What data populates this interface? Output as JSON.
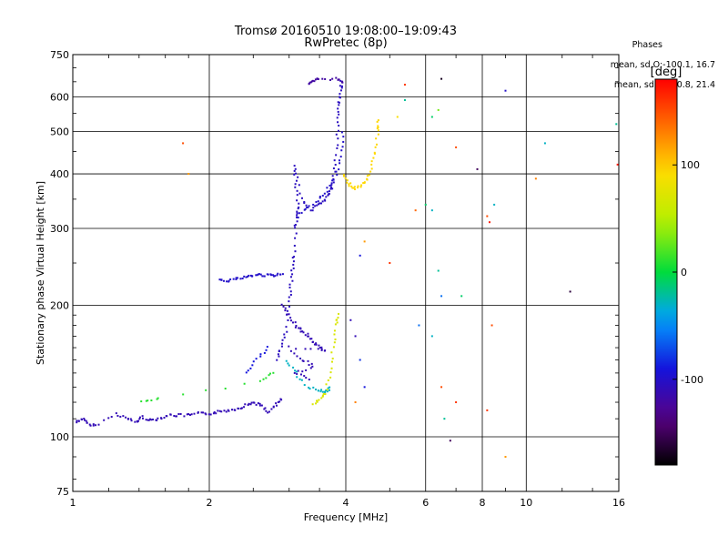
{
  "header": {
    "title": "Tromsø 20160510 19:08:00–19:09:43",
    "subtitle": "RwPretec (8p)"
  },
  "phases_box": {
    "heading": "Phases",
    "line_o": "mean, sd,O:-100.1, 16.7",
    "line_x": "mean, sd,X:  90.8, 21.4"
  },
  "colorbar": {
    "label": "[deg]",
    "ticks": [
      "100",
      "0",
      "-100"
    ],
    "range": [
      -180,
      180
    ]
  },
  "chart_data": {
    "type": "scatter",
    "title": "Tromsø 20160510 19:08:00–19:09:43",
    "subtitle": "RwPretec (8p)",
    "xlabel": "Frequency [MHz]",
    "ylabel": "Stationary phase Virtual Height [km]",
    "xscale": "log",
    "yscale": "log",
    "xlim": [
      1,
      16
    ],
    "ylim": [
      75,
      750
    ],
    "xticks": [
      1,
      2,
      4,
      6,
      8,
      10,
      16
    ],
    "yticks": [
      75,
      100,
      200,
      300,
      400,
      500,
      600,
      750
    ],
    "grid": true,
    "traces": [
      {
        "phase": -110,
        "points": [
          [
            1.02,
            108
          ],
          [
            1.05,
            110
          ],
          [
            1.08,
            107
          ],
          [
            1.12,
            106
          ],
          [
            1.25,
            113
          ],
          [
            1.32,
            110
          ],
          [
            1.38,
            108
          ],
          [
            1.42,
            111
          ],
          [
            1.48,
            109
          ],
          [
            1.55,
            110
          ],
          [
            1.62,
            112
          ],
          [
            1.7,
            112
          ],
          [
            1.8,
            112
          ],
          [
            1.9,
            113
          ],
          [
            2.0,
            113
          ],
          [
            2.1,
            114
          ],
          [
            2.2,
            115
          ],
          [
            2.3,
            116
          ],
          [
            2.4,
            118
          ],
          [
            2.5,
            120
          ],
          [
            2.6,
            118
          ],
          [
            2.7,
            114
          ],
          [
            2.8,
            118
          ],
          [
            2.9,
            122
          ]
        ]
      },
      {
        "phase": -105,
        "points": [
          [
            2.82,
            150
          ],
          [
            2.88,
            160
          ],
          [
            2.95,
            175
          ],
          [
            3.0,
            200
          ],
          [
            3.02,
            220
          ],
          [
            3.05,
            240
          ],
          [
            3.08,
            260
          ],
          [
            3.1,
            300
          ],
          [
            3.12,
            320
          ],
          [
            3.15,
            340
          ],
          [
            3.1,
            380
          ],
          [
            3.08,
            420
          ],
          [
            3.2,
            350
          ],
          [
            3.35,
            330
          ],
          [
            3.5,
            340
          ],
          [
            3.6,
            350
          ],
          [
            3.7,
            365
          ],
          [
            3.75,
            380
          ],
          [
            3.8,
            420
          ],
          [
            3.82,
            480
          ],
          [
            3.85,
            540
          ],
          [
            3.87,
            580
          ],
          [
            3.9,
            620
          ],
          [
            3.92,
            650
          ]
        ]
      },
      {
        "phase": -100,
        "points": [
          [
            3.15,
            320
          ],
          [
            3.3,
            335
          ],
          [
            3.5,
            350
          ],
          [
            3.65,
            370
          ],
          [
            3.8,
            395
          ],
          [
            3.9,
            440
          ],
          [
            3.95,
            500
          ]
        ]
      },
      {
        "phase": -120,
        "points": [
          [
            3.3,
            640
          ],
          [
            3.4,
            650
          ],
          [
            3.5,
            660
          ],
          [
            3.8,
            660
          ],
          [
            3.95,
            650
          ]
        ]
      },
      {
        "phase": 95,
        "points": [
          [
            3.95,
            400
          ],
          [
            4.05,
            380
          ],
          [
            4.15,
            370
          ],
          [
            4.3,
            375
          ],
          [
            4.45,
            385
          ],
          [
            4.55,
            410
          ],
          [
            4.65,
            450
          ],
          [
            4.7,
            500
          ],
          [
            4.72,
            530
          ]
        ]
      },
      {
        "phase": -100,
        "points": [
          [
            2.1,
            230
          ],
          [
            2.2,
            228
          ],
          [
            2.3,
            230
          ],
          [
            2.4,
            232
          ],
          [
            2.5,
            234
          ],
          [
            2.6,
            235
          ],
          [
            2.7,
            234
          ],
          [
            2.8,
            234
          ],
          [
            2.9,
            236
          ]
        ]
      },
      {
        "phase": -110,
        "points": [
          [
            2.9,
            200
          ],
          [
            3.0,
            190
          ],
          [
            3.1,
            180
          ],
          [
            3.2,
            175
          ],
          [
            3.3,
            170
          ],
          [
            3.4,
            165
          ],
          [
            3.5,
            160
          ],
          [
            3.6,
            158
          ],
          [
            3.0,
            160
          ],
          [
            3.2,
            150
          ],
          [
            3.4,
            145
          ],
          [
            3.1,
            140
          ],
          [
            3.3,
            135
          ]
        ]
      },
      {
        "phase": -30,
        "points": [
          [
            2.95,
            150
          ],
          [
            3.1,
            140
          ],
          [
            3.3,
            130
          ],
          [
            3.5,
            128
          ],
          [
            3.6,
            126
          ],
          [
            3.7,
            130
          ]
        ]
      },
      {
        "phase": 70,
        "points": [
          [
            3.4,
            118
          ],
          [
            3.5,
            122
          ],
          [
            3.6,
            126
          ],
          [
            3.7,
            140
          ],
          [
            3.75,
            160
          ],
          [
            3.8,
            180
          ],
          [
            3.85,
            190
          ]
        ]
      },
      {
        "phase": 10,
        "points": [
          [
            1.42,
            120
          ],
          [
            1.55,
            122
          ],
          [
            2.6,
            135
          ],
          [
            2.75,
            140
          ]
        ]
      },
      {
        "phase": -90,
        "points": [
          [
            2.4,
            140
          ],
          [
            2.55,
            150
          ],
          [
            2.7,
            160
          ]
        ]
      }
    ],
    "scattered_points": [
      [
        1.75,
        470,
        150
      ],
      [
        1.8,
        400,
        120
      ],
      [
        5.4,
        640,
        160
      ],
      [
        5.4,
        590,
        -20
      ],
      [
        5.2,
        540,
        90
      ],
      [
        6.2,
        540,
        -10
      ],
      [
        6.4,
        560,
        30
      ],
      [
        6.5,
        660,
        -170
      ],
      [
        7.0,
        460,
        150
      ],
      [
        7.8,
        410,
        -150
      ],
      [
        8.2,
        320,
        150
      ],
      [
        8.5,
        340,
        -30
      ],
      [
        9.0,
        620,
        -100
      ],
      [
        10.5,
        390,
        130
      ],
      [
        11.0,
        470,
        -30
      ],
      [
        15.8,
        520,
        -20
      ],
      [
        15.9,
        420,
        170
      ],
      [
        6.0,
        340,
        -10
      ],
      [
        6.2,
        330,
        -30
      ],
      [
        5.7,
        330,
        140
      ],
      [
        4.4,
        280,
        120
      ],
      [
        4.3,
        260,
        -90
      ],
      [
        6.4,
        240,
        -20
      ],
      [
        6.5,
        210,
        -60
      ],
      [
        7.2,
        210,
        -10
      ],
      [
        12.5,
        215,
        -160
      ],
      [
        8.3,
        310,
        170
      ],
      [
        8.4,
        180,
        150
      ],
      [
        4.1,
        185,
        -110
      ],
      [
        5.0,
        250,
        160
      ],
      [
        6.2,
        170,
        -30
      ],
      [
        5.8,
        180,
        -60
      ],
      [
        4.2,
        170,
        -110
      ],
      [
        4.3,
        150,
        -80
      ],
      [
        4.4,
        130,
        -90
      ],
      [
        4.2,
        120,
        130
      ],
      [
        6.5,
        130,
        150
      ],
      [
        7.0,
        120,
        160
      ],
      [
        8.2,
        115,
        160
      ],
      [
        9.0,
        90,
        120
      ],
      [
        6.8,
        98,
        -150
      ],
      [
        6.6,
        110,
        -20
      ]
    ]
  }
}
